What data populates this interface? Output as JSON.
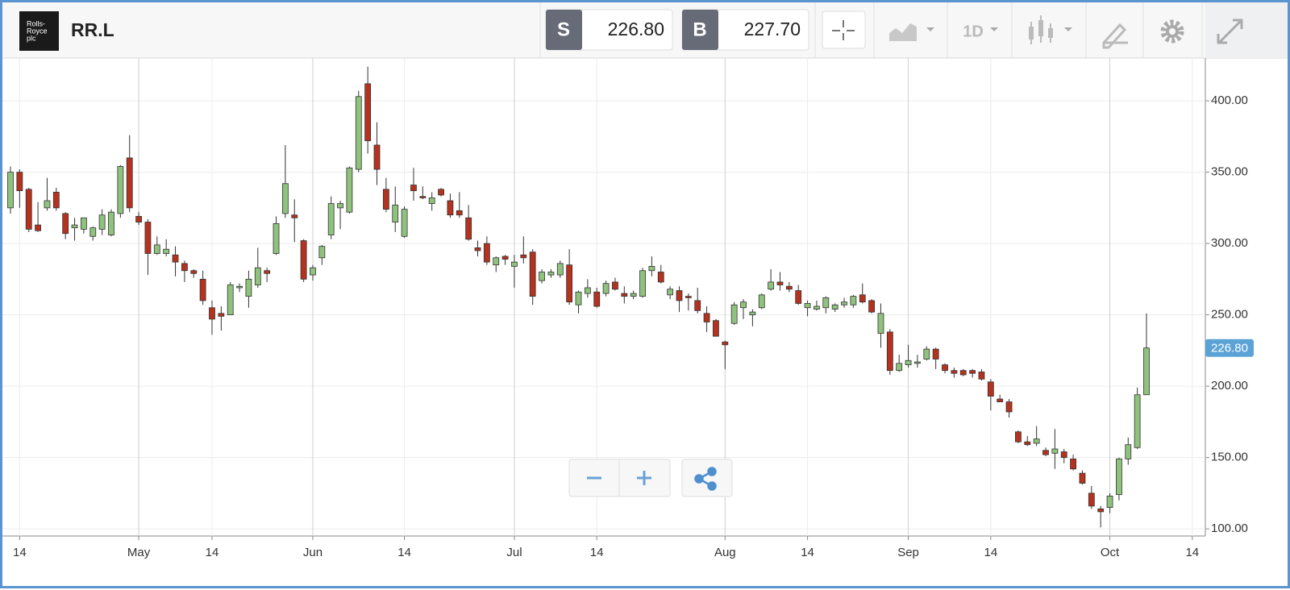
{
  "header": {
    "logo": [
      "Rolls-",
      "Royce",
      "plc"
    ],
    "symbol": "RR.L",
    "sell_label": "S",
    "sell_price": "226.80",
    "buy_label": "B",
    "buy_price": "227.70",
    "interval": "1D"
  },
  "chart_data": {
    "type": "candlestick",
    "x": [
      "04-09",
      "04-14",
      "04-15",
      "04-16",
      "04-17",
      "04-20",
      "04-21",
      "04-22",
      "04-23",
      "04-24",
      "04-27",
      "04-28",
      "04-29",
      "04-30",
      "05-01",
      "05-04",
      "05-05",
      "05-06",
      "05-07",
      "05-11",
      "05-12",
      "05-13",
      "05-14",
      "05-15",
      "05-18",
      "05-19",
      "05-20",
      "05-21",
      "05-22",
      "05-26",
      "05-27",
      "05-28",
      "05-29",
      "06-01",
      "06-02",
      "06-03",
      "06-04",
      "06-05",
      "06-08",
      "06-09",
      "06-10",
      "06-11",
      "06-12",
      "06-15",
      "06-16",
      "06-17",
      "06-18",
      "06-19",
      "06-22",
      "06-23",
      "06-24",
      "06-25",
      "06-26",
      "06-29",
      "06-30",
      "07-01",
      "07-02",
      "07-03",
      "07-06",
      "07-07",
      "07-08",
      "07-09",
      "07-10",
      "07-13",
      "07-14",
      "07-15",
      "07-16",
      "07-17",
      "07-20",
      "07-21",
      "07-22",
      "07-23",
      "07-24",
      "07-27",
      "07-28",
      "07-29",
      "07-30",
      "07-31",
      "08-03",
      "08-04",
      "08-05",
      "08-06",
      "08-07",
      "08-10",
      "08-11",
      "08-12",
      "08-13",
      "08-14",
      "08-17",
      "08-18",
      "08-19",
      "08-20",
      "08-21",
      "08-24",
      "08-25",
      "08-26",
      "08-27",
      "08-28",
      "09-01",
      "09-02",
      "09-03",
      "09-04",
      "09-07",
      "09-08",
      "09-09",
      "09-10",
      "09-11",
      "09-14",
      "09-15",
      "09-16",
      "09-17",
      "09-18",
      "09-21",
      "09-22",
      "09-23",
      "09-24",
      "09-25",
      "09-28",
      "09-29",
      "09-30",
      "10-01",
      "10-02",
      "10-05",
      "10-06",
      "10-07"
    ],
    "open": [
      325,
      350,
      338,
      313,
      325,
      336,
      321,
      311,
      310,
      305,
      310,
      306,
      321,
      360,
      319,
      315,
      293,
      293,
      292,
      286,
      281,
      275,
      255,
      251,
      250,
      269,
      263,
      271,
      281,
      293,
      321,
      320,
      302,
      278,
      290,
      306,
      325,
      322,
      352,
      412,
      369,
      338,
      315,
      305,
      341,
      333,
      328,
      338,
      330,
      323,
      318,
      297,
      300,
      285,
      291,
      284,
      292,
      294,
      274,
      278,
      278,
      285,
      257,
      265,
      266,
      265,
      273,
      265,
      263,
      263,
      281,
      280,
      264,
      267,
      263,
      260,
      251,
      246,
      231,
      244,
      255,
      250,
      255,
      268,
      273,
      270,
      267,
      255,
      254,
      255,
      254,
      257,
      257,
      264,
      260,
      237,
      238,
      211,
      215,
      216,
      219,
      226,
      215,
      211,
      211,
      211,
      210,
      203,
      191,
      189,
      168,
      161,
      160,
      155,
      153,
      154,
      149,
      139,
      125,
      114,
      115,
      124,
      149,
      157,
      194
    ],
    "high": [
      354,
      352,
      339,
      329,
      346,
      339,
      322,
      318,
      318,
      312,
      324,
      324,
      355,
      376,
      322,
      317,
      305,
      303,
      298,
      288,
      282,
      281,
      260,
      256,
      273,
      272,
      281,
      297,
      283,
      319,
      369,
      331,
      303,
      285,
      299,
      333,
      330,
      354,
      407,
      424,
      385,
      346,
      340,
      326,
      353,
      340,
      336,
      339,
      335,
      336,
      327,
      302,
      305,
      291,
      292,
      292,
      305,
      296,
      282,
      282,
      288,
      296,
      267,
      275,
      269,
      274,
      276,
      270,
      267,
      283,
      291,
      285,
      270,
      270,
      265,
      269,
      256,
      247,
      232,
      259,
      261,
      254,
      265,
      282,
      280,
      273,
      271,
      260,
      260,
      263,
      258,
      262,
      264,
      272,
      261,
      258,
      240,
      222,
      229,
      222,
      228,
      227,
      216,
      213,
      212,
      212,
      212,
      205,
      194,
      191,
      169,
      165,
      172,
      157,
      170,
      156,
      152,
      141,
      130,
      116,
      125,
      150,
      164,
      199,
      251
    ],
    "low": [
      321,
      325,
      308,
      308,
      323,
      323,
      303,
      302,
      307,
      302,
      306,
      305,
      318,
      322,
      313,
      278,
      292,
      291,
      277,
      273,
      276,
      257,
      236,
      239,
      250,
      266,
      255,
      269,
      273,
      292,
      318,
      301,
      273,
      274,
      285,
      303,
      310,
      321,
      350,
      363,
      341,
      322,
      308,
      304,
      330,
      331,
      323,
      333,
      318,
      318,
      302,
      291,
      285,
      280,
      285,
      269,
      286,
      257,
      272,
      276,
      276,
      257,
      251,
      262,
      255,
      263,
      267,
      258,
      261,
      262,
      277,
      272,
      261,
      252,
      253,
      251,
      238,
      235,
      212,
      243,
      247,
      242,
      254,
      267,
      267,
      266,
      257,
      249,
      253,
      251,
      252,
      255,
      255,
      258,
      251,
      227,
      208,
      210,
      213,
      213,
      218,
      212,
      209,
      206,
      207,
      206,
      204,
      183,
      189,
      178,
      160,
      158,
      158,
      151,
      142,
      146,
      141,
      131,
      114,
      101,
      111,
      120,
      145,
      156,
      194
    ],
    "close": [
      350,
      337,
      310,
      309,
      330,
      325,
      307,
      313,
      318,
      311,
      320,
      322,
      354,
      325,
      315,
      293,
      299,
      296,
      287,
      281,
      279,
      260,
      247,
      249,
      271,
      270,
      275,
      283,
      279,
      314,
      342,
      318,
      275,
      283,
      298,
      328,
      328,
      353,
      403,
      372,
      352,
      324,
      327,
      324,
      337,
      332,
      332,
      334,
      320,
      320,
      303,
      295,
      287,
      290,
      289,
      287,
      290,
      263,
      280,
      280,
      286,
      259,
      266,
      269,
      256,
      272,
      268,
      263,
      265,
      281,
      284,
      273,
      268,
      260,
      262,
      253,
      245,
      235,
      229,
      257,
      259,
      252,
      264,
      273,
      271,
      268,
      258,
      258,
      256,
      262,
      257,
      259,
      263,
      259,
      252,
      251,
      211,
      216,
      218,
      217,
      226,
      219,
      211,
      209,
      208,
      209,
      205,
      193,
      189,
      182,
      161,
      159,
      163,
      152,
      156,
      150,
      142,
      132,
      116,
      112,
      123,
      149,
      159,
      194,
      226.8
    ],
    "up_color": "#8fc27d",
    "down_color": "#b5321f",
    "wick_color": "#333333",
    "last_price": {
      "value": 226.8,
      "label": "226.80"
    },
    "ylim": [
      95,
      430
    ],
    "yticks": [
      {
        "value": 100,
        "label": "100.00"
      },
      {
        "value": 150,
        "label": "150.00"
      },
      {
        "value": 200,
        "label": "200.00"
      },
      {
        "value": 250,
        "label": "250.00"
      },
      {
        "value": 300,
        "label": "300.00"
      },
      {
        "value": 350,
        "label": "350.00"
      },
      {
        "value": 400,
        "label": "400.00"
      }
    ],
    "xticks": [
      {
        "value": "04-14",
        "label": "14"
      },
      {
        "value": "05-01",
        "label": "May"
      },
      {
        "value": "05-14",
        "label": "14"
      },
      {
        "value": "06-01",
        "label": "Jun"
      },
      {
        "value": "06-15",
        "label": "14"
      },
      {
        "value": "07-01",
        "label": "Jul"
      },
      {
        "value": "07-14",
        "label": "14"
      },
      {
        "value": "08-03",
        "label": "Aug"
      },
      {
        "value": "08-14",
        "label": "14"
      },
      {
        "value": "09-01",
        "label": "Sep"
      },
      {
        "value": "09-14",
        "label": "14"
      },
      {
        "value": "10-01",
        "label": "Oct"
      },
      {
        "value": "10-14",
        "label": "14"
      }
    ],
    "grid": true
  }
}
